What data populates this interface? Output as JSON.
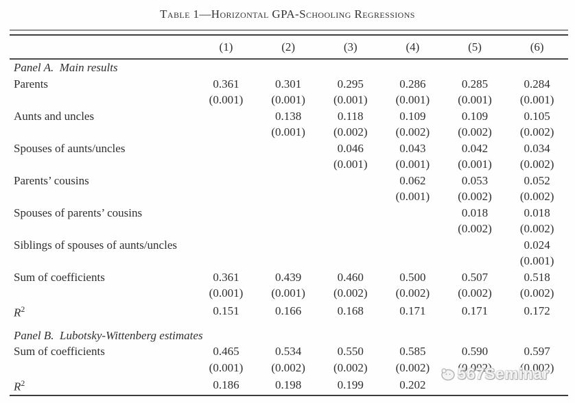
{
  "title": "Table 1—Horizontal GPA-Schooling Regressions",
  "colors": {
    "text": "#2f2f2f",
    "rule_light": "#909090",
    "rule_dark": "#3d3d3d",
    "background": "#fefefe",
    "watermark_gray": "#bdbdbd"
  },
  "table": {
    "column_headers": [
      "(1)",
      "(2)",
      "(3)",
      "(4)",
      "(5)",
      "(6)"
    ],
    "panels": [
      {
        "label": "Panel A.  Main results",
        "rows": [
          {
            "label": "Parents",
            "estimates": [
              "0.361",
              "0.301",
              "0.295",
              "0.286",
              "0.285",
              "0.284"
            ],
            "std_errors": [
              "(0.001)",
              "(0.001)",
              "(0.001)",
              "(0.001)",
              "(0.001)",
              "(0.001)"
            ]
          },
          {
            "label": "Aunts and uncles",
            "estimates": [
              "",
              "0.138",
              "0.118",
              "0.109",
              "0.109",
              "0.105"
            ],
            "std_errors": [
              "",
              "(0.001)",
              "(0.002)",
              "(0.002)",
              "(0.002)",
              "(0.002)"
            ]
          },
          {
            "label": "Spouses of aunts/uncles",
            "estimates": [
              "",
              "",
              "0.046",
              "0.043",
              "0.042",
              "0.034"
            ],
            "std_errors": [
              "",
              "",
              "(0.001)",
              "(0.001)",
              "(0.001)",
              "(0.002)"
            ]
          },
          {
            "label": "Parents’ cousins",
            "estimates": [
              "",
              "",
              "",
              "0.062",
              "0.053",
              "0.052"
            ],
            "std_errors": [
              "",
              "",
              "",
              "(0.001)",
              "(0.002)",
              "(0.002)"
            ]
          },
          {
            "label": "Spouses of parents’ cousins",
            "estimates": [
              "",
              "",
              "",
              "",
              "0.018",
              "0.018"
            ],
            "std_errors": [
              "",
              "",
              "",
              "",
              "(0.002)",
              "(0.002)"
            ]
          },
          {
            "label": "Siblings of spouses of aunts/uncles",
            "estimates": [
              "",
              "",
              "",
              "",
              "",
              "0.024"
            ],
            "std_errors": [
              "",
              "",
              "",
              "",
              "",
              "(0.001)"
            ]
          },
          {
            "label": "Sum of coefficients",
            "estimates": [
              "0.361",
              "0.439",
              "0.460",
              "0.500",
              "0.507",
              "0.518"
            ],
            "std_errors": [
              "(0.001)",
              "(0.001)",
              "(0.002)",
              "(0.002)",
              "(0.002)",
              "(0.002)"
            ]
          },
          {
            "label": "R",
            "label_sup": "2",
            "italic_label": true,
            "estimates": [
              "0.151",
              "0.166",
              "0.168",
              "0.171",
              "0.171",
              "0.172"
            ]
          }
        ]
      },
      {
        "label": "Panel B.  Lubotsky-Wittenberg estimates",
        "rows": [
          {
            "label": "Sum of coefficients",
            "estimates": [
              "0.465",
              "0.534",
              "0.550",
              "0.585",
              "0.590",
              "0.597"
            ],
            "std_errors": [
              "(0.001)",
              "(0.002)",
              "(0.002)",
              "(0.002)",
              "(0.002)",
              "(0.002)"
            ]
          },
          {
            "label": "R",
            "label_sup": "2",
            "italic_label": true,
            "estimates": [
              "0.186",
              "0.198",
              "0.199",
              "0.202",
              "",
              ""
            ]
          }
        ]
      }
    ]
  },
  "watermark": {
    "icon": "watermark-logo-icon",
    "text": "567Seminar"
  }
}
